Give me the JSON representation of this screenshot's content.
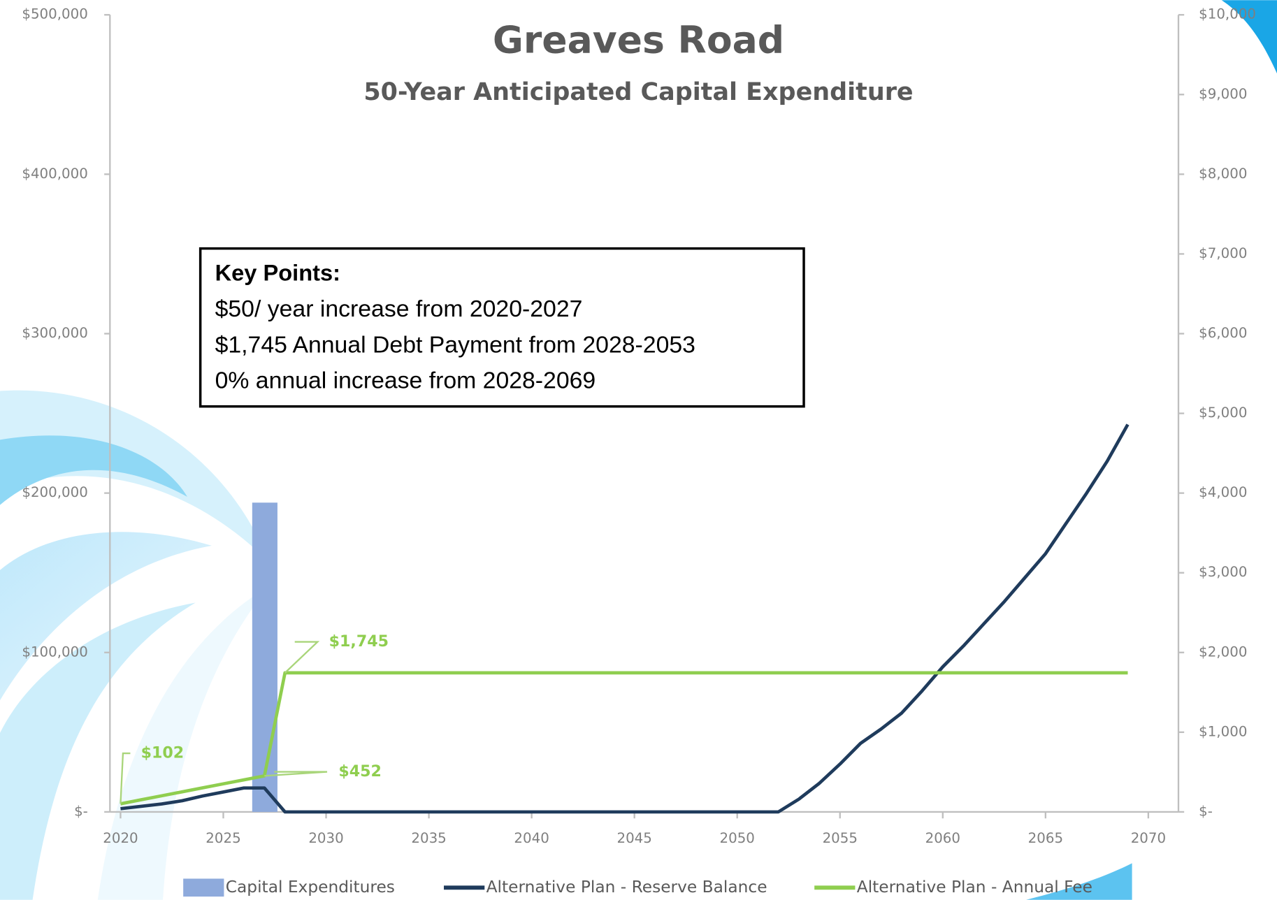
{
  "chart_data": {
    "type": "combo",
    "title": "Greaves Road",
    "subtitle": "50-Year Anticipated Capital Expenditure",
    "text_box": {
      "title": "Key Points:",
      "lines": [
        "$50/ year increase from 2020-2027",
        "$1,745 Annual Debt Payment from 2028-2053",
        "0% annual increase from 2028-2069"
      ]
    },
    "x": [
      2020,
      2021,
      2022,
      2023,
      2024,
      2025,
      2026,
      2027,
      2028,
      2029,
      2030,
      2031,
      2032,
      2033,
      2034,
      2035,
      2036,
      2037,
      2038,
      2039,
      2040,
      2041,
      2042,
      2043,
      2044,
      2045,
      2046,
      2047,
      2048,
      2049,
      2050,
      2051,
      2052,
      2053,
      2054,
      2055,
      2056,
      2057,
      2058,
      2059,
      2060,
      2061,
      2062,
      2063,
      2064,
      2065,
      2066,
      2067,
      2068,
      2069
    ],
    "xlim": [
      2020,
      2070
    ],
    "xticks": [
      2020,
      2025,
      2030,
      2035,
      2040,
      2045,
      2050,
      2055,
      2060,
      2065,
      2070
    ],
    "ylim": [
      0,
      500000
    ],
    "yticks": [
      {
        "value": 0,
        "label": "$-"
      },
      {
        "value": 100000,
        "label": "$100,000"
      },
      {
        "value": 200000,
        "label": "$200,000"
      },
      {
        "value": 300000,
        "label": "$300,000"
      },
      {
        "value": 400000,
        "label": "$400,000"
      },
      {
        "value": 500000,
        "label": "$500,000"
      }
    ],
    "y2lim": [
      0,
      10000
    ],
    "y2ticks": [
      {
        "value": 0,
        "label": "$-"
      },
      {
        "value": 1000,
        "label": "$1,000"
      },
      {
        "value": 2000,
        "label": "$2,000"
      },
      {
        "value": 3000,
        "label": "$3,000"
      },
      {
        "value": 4000,
        "label": "$4,000"
      },
      {
        "value": 5000,
        "label": "$5,000"
      },
      {
        "value": 6000,
        "label": "$6,000"
      },
      {
        "value": 7000,
        "label": "$7,000"
      },
      {
        "value": 8000,
        "label": "$8,000"
      },
      {
        "value": 9000,
        "label": "$9,000"
      },
      {
        "value": 10000,
        "label": "$10,000"
      }
    ],
    "series": [
      {
        "name": "Capital Expenditures",
        "type": "bar",
        "color": "#8eaadc",
        "values": [
          null,
          null,
          null,
          null,
          null,
          null,
          null,
          194000,
          null,
          null,
          null,
          null,
          null,
          null,
          null,
          null,
          null,
          null,
          null,
          null,
          null,
          null,
          null,
          null,
          null,
          null,
          null,
          null,
          null,
          null,
          null,
          null,
          null,
          null,
          null,
          null,
          null,
          null,
          null,
          null,
          null,
          null,
          null,
          null,
          null,
          null,
          null,
          null,
          null,
          null
        ]
      },
      {
        "name": "Alternative Plan - Reserve Balance",
        "type": "line",
        "color": "#1f3b5c",
        "values": [
          2000,
          3500,
          5000,
          7000,
          10000,
          12500,
          15000,
          15000,
          0,
          0,
          0,
          0,
          0,
          0,
          0,
          0,
          0,
          0,
          0,
          0,
          0,
          0,
          0,
          0,
          0,
          0,
          0,
          0,
          0,
          0,
          0,
          0,
          0,
          8000,
          18000,
          30000,
          43000,
          52000,
          62000,
          76000,
          91000,
          104000,
          118000,
          132000,
          147000,
          162000,
          181000,
          200000,
          220000,
          243000
        ]
      },
      {
        "name": "Alternative Plan - Annual Fee",
        "type": "line",
        "axis": "y2",
        "color": "#8fce4f",
        "values": [
          102,
          152,
          202,
          252,
          302,
          352,
          402,
          452,
          1745,
          1745,
          1745,
          1745,
          1745,
          1745,
          1745,
          1745,
          1745,
          1745,
          1745,
          1745,
          1745,
          1745,
          1745,
          1745,
          1745,
          1745,
          1745,
          1745,
          1745,
          1745,
          1745,
          1745,
          1745,
          1745,
          1745,
          1745,
          1745,
          1745,
          1745,
          1745,
          1745,
          1745,
          1745,
          1745,
          1745,
          1745,
          1745,
          1745,
          1745,
          1745
        ],
        "value_labels": [
          "$102",
          null,
          null,
          null,
          null,
          null,
          null,
          "$452",
          "$1,745",
          null,
          null,
          null,
          null,
          null,
          null,
          null,
          null,
          null,
          null,
          null,
          null,
          null,
          null,
          null,
          null,
          null,
          null,
          null,
          null,
          null,
          null,
          null,
          null,
          null,
          null,
          null,
          null,
          null,
          null,
          null,
          null,
          null,
          null,
          null,
          null,
          null,
          null,
          null,
          null,
          null
        ]
      }
    ]
  }
}
